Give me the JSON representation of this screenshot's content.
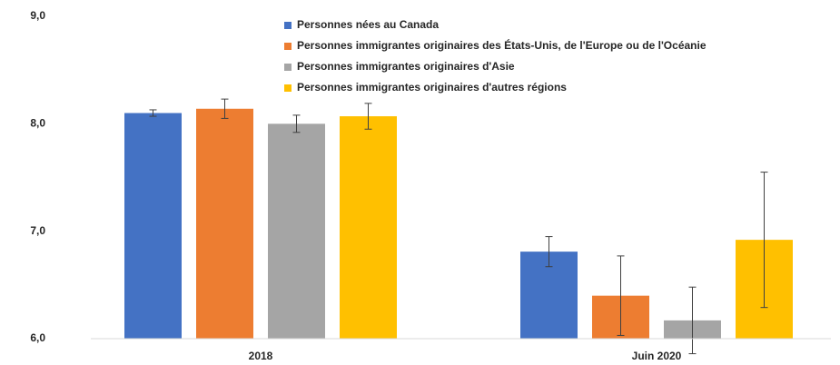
{
  "chart_data": {
    "type": "bar",
    "categories": [
      "2018",
      "Juin 2020"
    ],
    "series": [
      {
        "name": "Personnes nées au Canada",
        "color": "#4472c4",
        "values": [
          8.1,
          6.81
        ],
        "errors": [
          0.03,
          0.14
        ]
      },
      {
        "name": "Personnes immigrantes originaires des États-Unis, de l'Europe ou de l'Océanie",
        "color": "#ed7d31",
        "values": [
          8.14,
          6.4
        ],
        "errors": [
          0.09,
          0.37
        ]
      },
      {
        "name": "Personnes immigrantes originaires d'Asie",
        "color": "#a5a5a5",
        "values": [
          8.0,
          6.17
        ],
        "errors": [
          0.08,
          0.31
        ]
      },
      {
        "name": "Personnes immigrantes originaires d'autres régions",
        "color": "#ffc000",
        "values": [
          8.07,
          6.92
        ],
        "errors": [
          0.12,
          0.63
        ]
      }
    ],
    "ylim": [
      6,
      9
    ],
    "yticks": [
      {
        "value": 6,
        "label": "6,0"
      },
      {
        "value": 7,
        "label": "7,0"
      },
      {
        "value": 8,
        "label": "8,0"
      },
      {
        "value": 9,
        "label": "9,0"
      }
    ],
    "grid": false,
    "legend": "top"
  }
}
